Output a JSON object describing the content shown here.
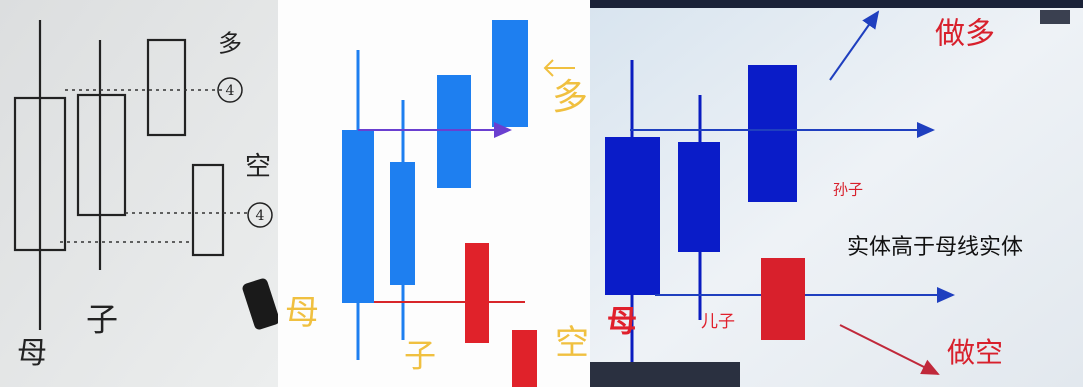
{
  "whiteboard": {
    "labels": [
      "母",
      "子",
      "多",
      "4",
      "空",
      "4"
    ]
  },
  "sketch": {
    "labels": [
      "母",
      "子",
      "多",
      "空"
    ]
  },
  "screen": {
    "labels": [
      "做多",
      "孙子",
      "实体高于母线实体",
      "母",
      "儿子",
      "做空"
    ]
  }
}
